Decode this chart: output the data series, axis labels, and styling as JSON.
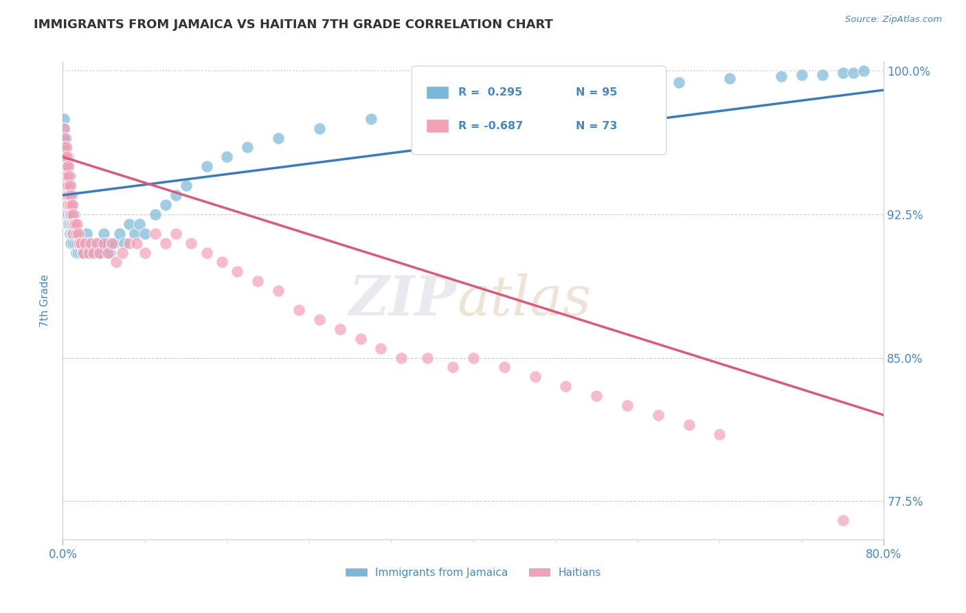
{
  "title": "IMMIGRANTS FROM JAMAICA VS HAITIAN 7TH GRADE CORRELATION CHART",
  "source_text": "Source: ZipAtlas.com",
  "ylabel": "7th Grade",
  "xmin": 0.0,
  "xmax": 0.8,
  "ymin": 0.755,
  "ymax": 1.005,
  "ytick_positions": [
    1.0,
    0.925,
    0.85,
    0.775
  ],
  "ytick_labels": [
    "100.0%",
    "92.5%",
    "85.0%",
    "77.5%"
  ],
  "legend_r_blue": "R =  0.295",
  "legend_n_blue": "N = 95",
  "legend_r_pink": "R = -0.687",
  "legend_n_pink": "N = 73",
  "legend_label_blue": "Immigrants from Jamaica",
  "legend_label_pink": "Haitians",
  "blue_color": "#7ab8d9",
  "pink_color": "#f4a0b5",
  "trend_blue_color": "#3a7bbf",
  "trend_pink_color": "#e05878",
  "grid_color": "#cccccc",
  "text_color": "#4488cc",
  "title_color": "#333333",
  "blue_x": [
    0.001,
    0.001,
    0.001,
    0.002,
    0.002,
    0.002,
    0.002,
    0.003,
    0.003,
    0.003,
    0.003,
    0.004,
    0.004,
    0.004,
    0.004,
    0.005,
    0.005,
    0.005,
    0.005,
    0.006,
    0.006,
    0.006,
    0.006,
    0.007,
    0.007,
    0.007,
    0.007,
    0.008,
    0.008,
    0.008,
    0.008,
    0.009,
    0.009,
    0.009,
    0.01,
    0.01,
    0.01,
    0.011,
    0.011,
    0.012,
    0.012,
    0.013,
    0.013,
    0.014,
    0.015,
    0.015,
    0.016,
    0.017,
    0.018,
    0.019,
    0.02,
    0.021,
    0.022,
    0.023,
    0.025,
    0.026,
    0.028,
    0.03,
    0.032,
    0.034,
    0.036,
    0.038,
    0.04,
    0.043,
    0.046,
    0.05,
    0.055,
    0.06,
    0.065,
    0.07,
    0.075,
    0.08,
    0.09,
    0.1,
    0.11,
    0.12,
    0.14,
    0.16,
    0.18,
    0.21,
    0.25,
    0.3,
    0.35,
    0.4,
    0.45,
    0.5,
    0.55,
    0.6,
    0.65,
    0.7,
    0.72,
    0.74,
    0.76,
    0.77,
    0.78
  ],
  "blue_y": [
    0.975,
    0.965,
    0.955,
    0.97,
    0.96,
    0.95,
    0.94,
    0.965,
    0.955,
    0.945,
    0.935,
    0.96,
    0.95,
    0.94,
    0.93,
    0.955,
    0.945,
    0.935,
    0.925,
    0.95,
    0.94,
    0.93,
    0.92,
    0.945,
    0.935,
    0.925,
    0.915,
    0.94,
    0.93,
    0.92,
    0.91,
    0.935,
    0.925,
    0.915,
    0.93,
    0.92,
    0.91,
    0.925,
    0.915,
    0.92,
    0.91,
    0.915,
    0.905,
    0.91,
    0.915,
    0.905,
    0.91,
    0.905,
    0.91,
    0.905,
    0.91,
    0.905,
    0.91,
    0.915,
    0.91,
    0.905,
    0.91,
    0.905,
    0.91,
    0.905,
    0.91,
    0.905,
    0.915,
    0.91,
    0.905,
    0.91,
    0.915,
    0.91,
    0.92,
    0.915,
    0.92,
    0.915,
    0.925,
    0.93,
    0.935,
    0.94,
    0.95,
    0.955,
    0.96,
    0.965,
    0.97,
    0.975,
    0.98,
    0.985,
    0.988,
    0.99,
    0.992,
    0.994,
    0.996,
    0.997,
    0.998,
    0.998,
    0.999,
    0.999,
    1.0
  ],
  "pink_x": [
    0.001,
    0.001,
    0.002,
    0.002,
    0.002,
    0.003,
    0.003,
    0.003,
    0.004,
    0.004,
    0.004,
    0.005,
    0.005,
    0.005,
    0.006,
    0.006,
    0.007,
    0.007,
    0.008,
    0.008,
    0.009,
    0.009,
    0.01,
    0.01,
    0.011,
    0.012,
    0.013,
    0.014,
    0.015,
    0.016,
    0.018,
    0.02,
    0.022,
    0.025,
    0.027,
    0.03,
    0.033,
    0.036,
    0.04,
    0.044,
    0.048,
    0.052,
    0.058,
    0.065,
    0.072,
    0.08,
    0.09,
    0.1,
    0.11,
    0.125,
    0.14,
    0.155,
    0.17,
    0.19,
    0.21,
    0.23,
    0.25,
    0.27,
    0.29,
    0.31,
    0.33,
    0.355,
    0.38,
    0.4,
    0.43,
    0.46,
    0.49,
    0.52,
    0.55,
    0.58,
    0.61,
    0.64,
    0.76
  ],
  "pink_y": [
    0.97,
    0.96,
    0.965,
    0.955,
    0.945,
    0.96,
    0.95,
    0.94,
    0.955,
    0.945,
    0.935,
    0.95,
    0.94,
    0.93,
    0.945,
    0.935,
    0.94,
    0.93,
    0.935,
    0.925,
    0.93,
    0.92,
    0.925,
    0.915,
    0.92,
    0.92,
    0.915,
    0.92,
    0.915,
    0.91,
    0.91,
    0.905,
    0.91,
    0.905,
    0.91,
    0.905,
    0.91,
    0.905,
    0.91,
    0.905,
    0.91,
    0.9,
    0.905,
    0.91,
    0.91,
    0.905,
    0.915,
    0.91,
    0.915,
    0.91,
    0.905,
    0.9,
    0.895,
    0.89,
    0.885,
    0.875,
    0.87,
    0.865,
    0.86,
    0.855,
    0.85,
    0.85,
    0.845,
    0.85,
    0.845,
    0.84,
    0.835,
    0.83,
    0.825,
    0.82,
    0.815,
    0.81,
    0.765
  ]
}
